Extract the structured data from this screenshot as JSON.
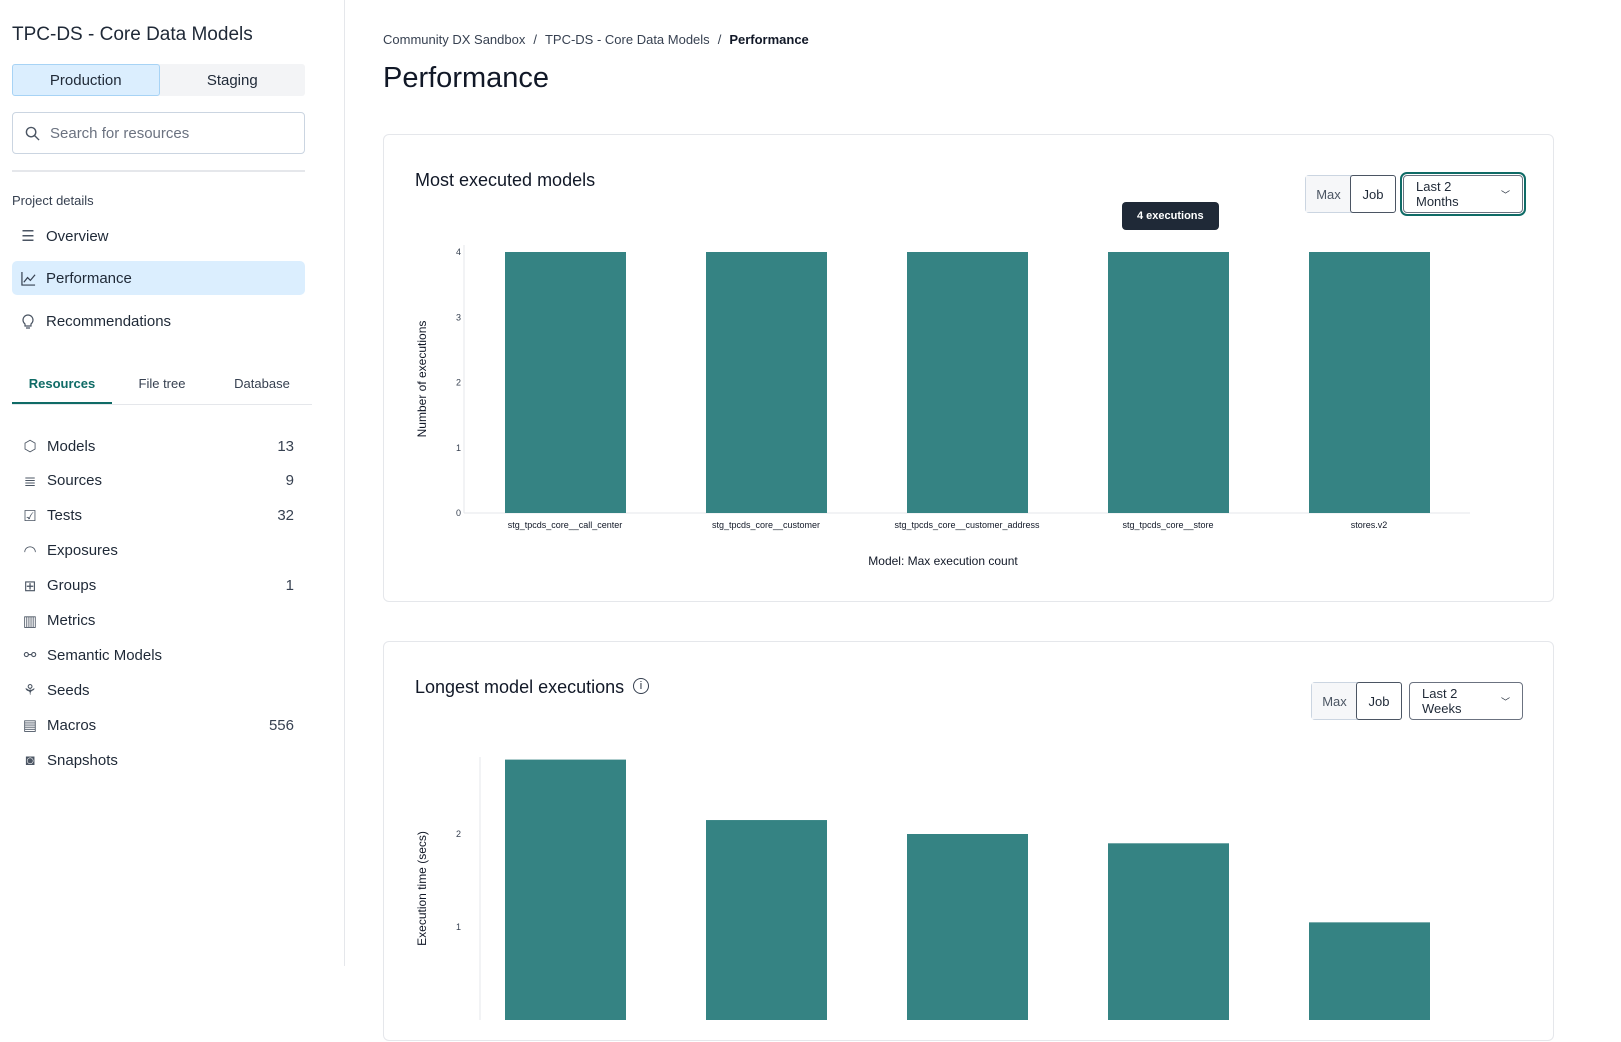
{
  "sidebar": {
    "project": "TPC-DS - Core Data Models",
    "env_tabs": [
      "Production",
      "Staging"
    ],
    "search_placeholder": "Search for resources",
    "section": "Project details",
    "nav": [
      {
        "label": "Overview",
        "icon": "list-icon"
      },
      {
        "label": "Performance",
        "icon": "line-chart-icon",
        "active": true
      },
      {
        "label": "Recommendations",
        "icon": "lightbulb-icon"
      }
    ],
    "tabs": [
      "Resources",
      "File tree",
      "Database"
    ],
    "resources": [
      {
        "label": "Models",
        "count": "13",
        "icon": "cube-icon"
      },
      {
        "label": "Sources",
        "count": "9",
        "icon": "database-icon"
      },
      {
        "label": "Tests",
        "count": "32",
        "icon": "clipboard-check-icon"
      },
      {
        "label": "Exposures",
        "count": "",
        "icon": "gauge-icon"
      },
      {
        "label": "Groups",
        "count": "1",
        "icon": "grid-icon"
      },
      {
        "label": "Metrics",
        "count": "",
        "icon": "bar-chart-icon"
      },
      {
        "label": "Semantic Models",
        "count": "",
        "icon": "nodes-icon"
      },
      {
        "label": "Seeds",
        "count": "",
        "icon": "sprout-icon"
      },
      {
        "label": "Macros",
        "count": "556",
        "icon": "document-icon"
      },
      {
        "label": "Snapshots",
        "count": "",
        "icon": "camera-icon"
      }
    ]
  },
  "breadcrumb": [
    "Community DX Sandbox",
    "TPC-DS - Core Data Models",
    "Performance"
  ],
  "page_title": "Performance",
  "cards": [
    {
      "title": "Most executed models",
      "toggle": [
        "Max",
        "Job"
      ],
      "range": "Last 2 Months",
      "tooltip": "4 executions"
    },
    {
      "title": "Longest model executions",
      "toggle": [
        "Max",
        "Job"
      ],
      "range": "Last 2 Weeks"
    }
  ],
  "accent": "#358383",
  "chart_data": [
    {
      "type": "bar",
      "categories": [
        "stg_tpcds_core__call_center",
        "stg_tpcds_core__customer",
        "stg_tpcds_core__customer_address",
        "stg_tpcds_core__store",
        "stores.v2"
      ],
      "values": [
        4,
        4,
        4,
        4,
        4
      ],
      "ylabel": "Number of executions",
      "xlabel": "Model: Max execution count",
      "ylim": [
        0,
        4
      ],
      "yticks": [
        0,
        1,
        2,
        3,
        4
      ],
      "grid": false
    },
    {
      "type": "bar",
      "values": [
        2.8,
        2.15,
        2.0,
        1.9,
        1.05
      ],
      "ylabel": "Execution time (secs)",
      "yticks": [
        1,
        2
      ],
      "grid": false
    }
  ]
}
